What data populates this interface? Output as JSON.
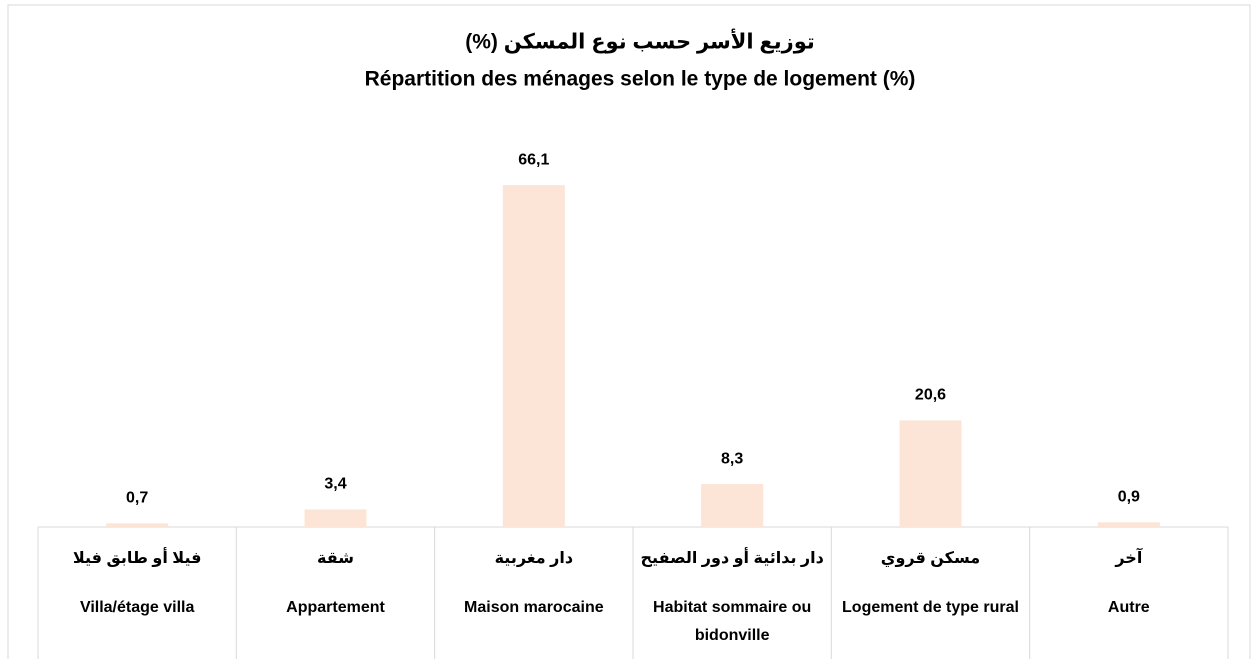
{
  "chart_data": {
    "type": "bar",
    "title": "توزيع الأسر حسب نوع المسكن (%)",
    "subtitle": "Répartition des ménages selon le type de logement (%)",
    "categories": [
      "Villa/étage villa",
      "Appartement",
      "Maison marocaine",
      "Habitat sommaire ou bidonville",
      "Logement de type rural",
      "Autre"
    ],
    "categories_ar": [
      "فيلا أو طابق فيلا",
      "شقة",
      "دار مغربية",
      "دار بدائية أو دور الصفيح",
      "مسكن قروي",
      "آخر"
    ],
    "values": [
      0.7,
      3.4,
      66.1,
      8.3,
      20.6,
      0.9
    ],
    "value_labels": [
      "0,7",
      "3,4",
      "66,1",
      "8,3",
      "20,6",
      "0,9"
    ],
    "color": "#fce4d6",
    "ylim": [
      0,
      70
    ]
  }
}
